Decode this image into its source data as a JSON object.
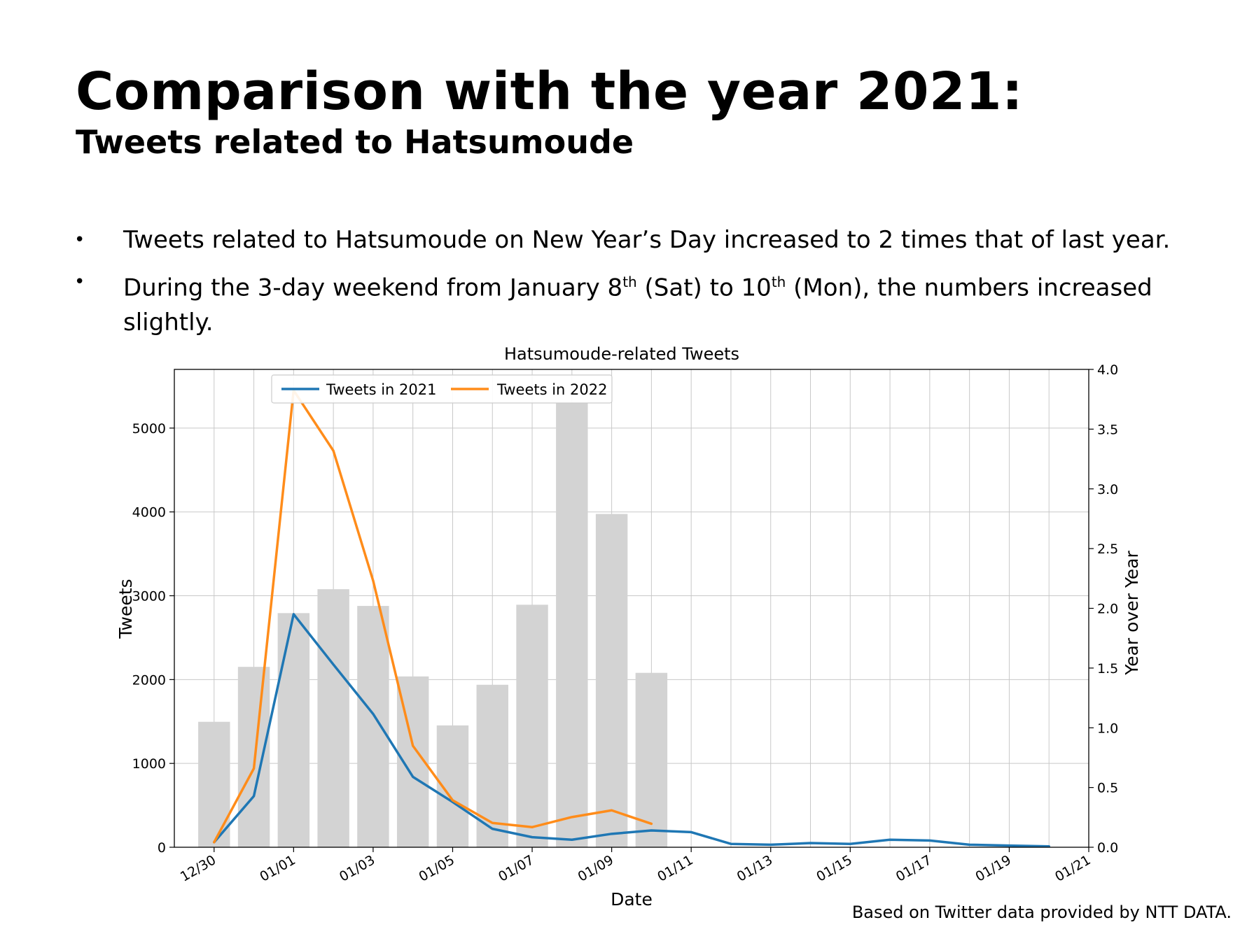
{
  "slide": {
    "title": "Comparison with the year 2021:",
    "subtitle": "Tweets related to Hatsumoude",
    "bullets": [
      {
        "text": "Tweets related to Hatsumoude on New Year’s Day increased to 2 times that of last year."
      },
      {
        "parts": [
          "During the 3-day weekend from January 8",
          "th",
          " (Sat) to 10",
          "th",
          " (Mon), the numbers increased slightly."
        ]
      }
    ],
    "source": "Based on Twitter data provided by NTT DATA."
  },
  "chart_data": {
    "type": "bar+line",
    "title": "Hatsumoude-related Tweets",
    "xlabel": "Date",
    "ylabel_left": "Tweets",
    "ylabel_right": "Year over Year",
    "ylim_left": [
      0,
      5700
    ],
    "ylim_right": [
      0,
      4.0
    ],
    "xlim": [
      "2021-12-29",
      "2022-01-21"
    ],
    "grid": true,
    "legend_position": "top-left",
    "x_ticks": [
      "12/30",
      "01/01",
      "01/03",
      "01/05",
      "01/07",
      "01/09",
      "01/11",
      "01/13",
      "01/15",
      "01/17",
      "01/19",
      "01/21"
    ],
    "y_ticks_left": [
      "0",
      "1000",
      "2000",
      "3000",
      "4000",
      "5000"
    ],
    "y_ticks_right": [
      "0.0",
      "0.5",
      "1.0",
      "1.5",
      "2.0",
      "2.5",
      "3.0",
      "3.5",
      "4.0"
    ],
    "bars": {
      "axis": "right",
      "color": "#d3d3d3",
      "dates": [
        "2021-12-30",
        "2021-12-31",
        "2022-01-01",
        "2022-01-02",
        "2022-01-03",
        "2022-01-04",
        "2022-01-05",
        "2022-01-06",
        "2022-01-07",
        "2022-01-08",
        "2022-01-09",
        "2022-01-10"
      ],
      "values": [
        1.05,
        1.51,
        1.96,
        2.16,
        2.02,
        1.43,
        1.02,
        1.36,
        2.03,
        3.72,
        2.79,
        1.46
      ]
    },
    "series": [
      {
        "name": "Tweets in 2021",
        "axis": "left",
        "color": "#1f77b4",
        "dates": [
          "2021-12-30",
          "2021-12-31",
          "2022-01-01",
          "2022-01-02",
          "2022-01-03",
          "2022-01-04",
          "2022-01-05",
          "2022-01-06",
          "2022-01-07",
          "2022-01-08",
          "2022-01-09",
          "2022-01-10",
          "2022-01-11",
          "2022-01-12",
          "2022-01-13",
          "2022-01-14",
          "2022-01-15",
          "2022-01-16",
          "2022-01-17",
          "2022-01-18",
          "2022-01-19",
          "2022-01-20"
        ],
        "values": [
          60,
          610,
          2780,
          2180,
          1590,
          840,
          540,
          220,
          120,
          90,
          160,
          200,
          180,
          40,
          30,
          50,
          40,
          90,
          80,
          30,
          20,
          10
        ]
      },
      {
        "name": "Tweets in 2022",
        "axis": "left",
        "color": "#ff8c1a",
        "dates": [
          "2021-12-30",
          "2021-12-31",
          "2022-01-01",
          "2022-01-02",
          "2022-01-03",
          "2022-01-04",
          "2022-01-05",
          "2022-01-06",
          "2022-01-07",
          "2022-01-08",
          "2022-01-09",
          "2022-01-10"
        ],
        "values": [
          60,
          940,
          5450,
          4730,
          3180,
          1210,
          560,
          290,
          240,
          360,
          440,
          280
        ]
      }
    ]
  }
}
